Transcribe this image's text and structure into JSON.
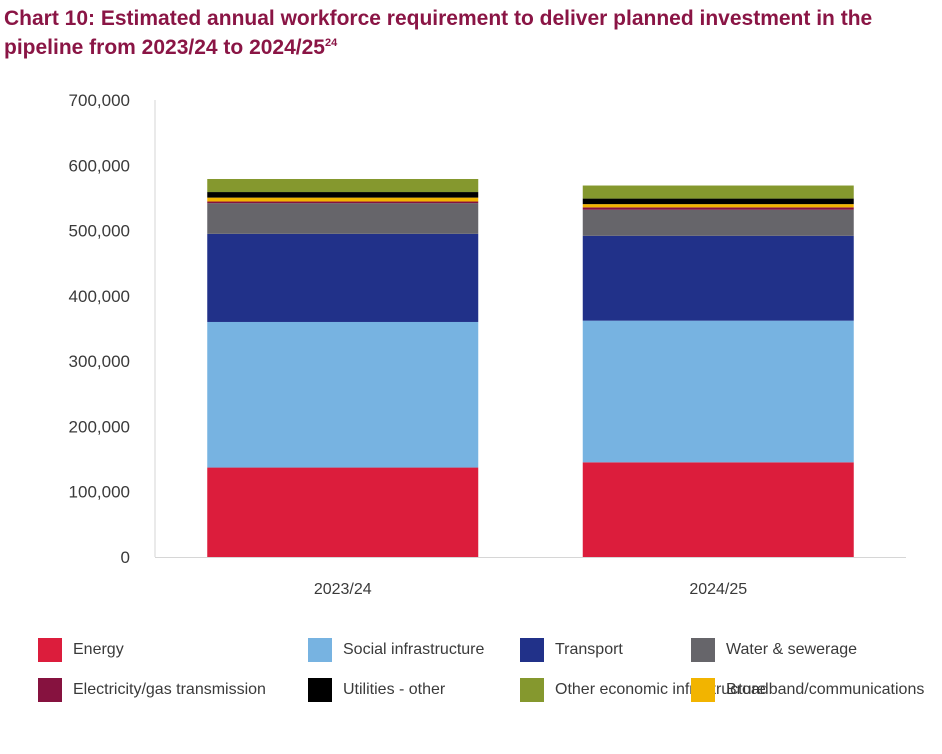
{
  "title": {
    "text": "Chart 10: Estimated annual workforce requirement to deliver planned investment in the pipeline from 2023/24 to 2024/25",
    "footnote": "24"
  },
  "chart_data": {
    "type": "bar",
    "stacked": true,
    "categories": [
      "2023/24",
      "2024/25"
    ],
    "ylim": [
      0,
      700000
    ],
    "yticks": [
      0,
      100000,
      200000,
      300000,
      400000,
      500000,
      600000,
      700000
    ],
    "ytick_labels": [
      "0",
      "100,000",
      "200,000",
      "300,000",
      "400,000",
      "500,000",
      "600,000",
      "700,000"
    ],
    "xlabel": "",
    "ylabel": "",
    "grid": false,
    "legend_position": "bottom",
    "series": [
      {
        "name": "Energy",
        "color": "#dc1d3c",
        "values": [
          137000,
          145000
        ]
      },
      {
        "name": "Social infrastructure",
        "color": "#77b3e1",
        "values": [
          223000,
          217000
        ]
      },
      {
        "name": "Transport",
        "color": "#213189",
        "values": [
          135000,
          130000
        ]
      },
      {
        "name": "Water & sewerage",
        "color": "#66656a",
        "values": [
          47000,
          40000
        ]
      },
      {
        "name": "Electricity/gas transmission",
        "color": "#86123f",
        "values": [
          2500,
          3500
        ]
      },
      {
        "name": "Broadband/communications",
        "color": "#f2b400",
        "values": [
          6000,
          5000
        ]
      },
      {
        "name": "Utilities - other",
        "color": "#000000",
        "values": [
          8500,
          8500
        ]
      },
      {
        "name": "Other economic infrastructure",
        "color": "#85982e",
        "values": [
          20000,
          20000
        ]
      }
    ]
  },
  "legend": [
    {
      "label": "Energy",
      "color": "#dc1d3c"
    },
    {
      "label": "Social infrastructure",
      "color": "#77b3e1"
    },
    {
      "label": "Transport",
      "color": "#213189"
    },
    {
      "label": "Water & sewerage",
      "color": "#66656a"
    },
    {
      "label": "Electricity/gas transmission",
      "color": "#86123f"
    },
    {
      "label": "Utilities - other",
      "color": "#000000"
    },
    {
      "label": "Other economic infrastructure",
      "color": "#85982e"
    },
    {
      "label": "Broadband/communications",
      "color": "#f2b400"
    }
  ]
}
